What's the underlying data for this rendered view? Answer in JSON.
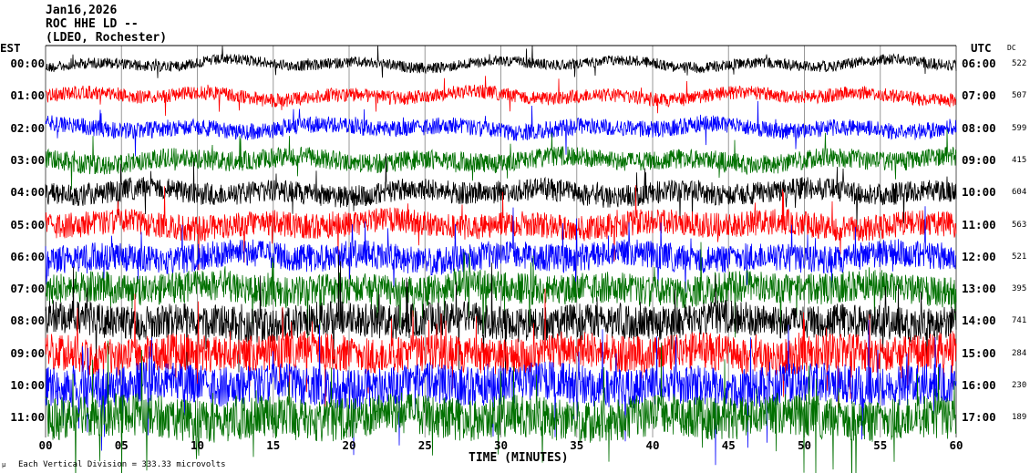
{
  "header": {
    "date": "Jan16,2026",
    "station": "ROC HHE LD --",
    "network": "(LDEO, Rochester)"
  },
  "chart_data": {
    "type": "line",
    "subtype": "helicorder",
    "left_axis_title": "EST",
    "right_axis_title": "UTC",
    "dc_title": "DC",
    "xlabel": "TIME (MINUTES)",
    "xlim": [
      0,
      60
    ],
    "x_ticks": [
      "00",
      "05",
      "10",
      "15",
      "20",
      "25",
      "30",
      "35",
      "40",
      "45",
      "50",
      "55",
      "60"
    ],
    "grid": "vertical every 5 minutes",
    "footnote": "Each Vertical Division =  333.33 microvolts",
    "trace_colors": [
      "#000000",
      "#ff0000",
      "#0000ff",
      "#007000"
    ],
    "rows": [
      {
        "est": "00:00",
        "utc": "06:00",
        "dc": "522"
      },
      {
        "est": "01:00",
        "utc": "07:00",
        "dc": "507"
      },
      {
        "est": "02:00",
        "utc": "08:00",
        "dc": "599"
      },
      {
        "est": "03:00",
        "utc": "09:00",
        "dc": "415"
      },
      {
        "est": "04:00",
        "utc": "10:00",
        "dc": "604"
      },
      {
        "est": "05:00",
        "utc": "11:00",
        "dc": "563"
      },
      {
        "est": "06:00",
        "utc": "12:00",
        "dc": "521"
      },
      {
        "est": "07:00",
        "utc": "13:00",
        "dc": "395"
      },
      {
        "est": "08:00",
        "utc": "14:00",
        "dc": "741"
      },
      {
        "est": "09:00",
        "utc": "15:00",
        "dc": "284"
      },
      {
        "est": "10:00",
        "utc": "16:00",
        "dc": "230"
      },
      {
        "est": "11:00",
        "utc": "17:00",
        "dc": "189"
      }
    ]
  }
}
